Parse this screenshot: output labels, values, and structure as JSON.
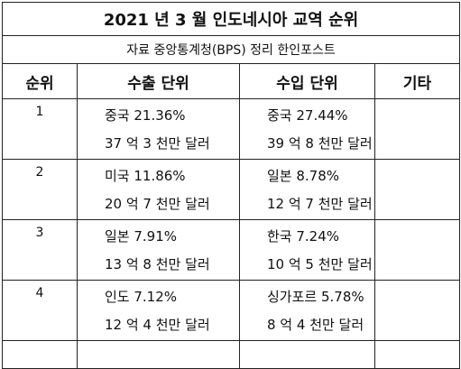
{
  "header": {
    "title": "2021 년 3 월 인도네시아 교역 순위",
    "subtitle": "자료 중앙통계청(BPS) 정리 한인포스트"
  },
  "table": {
    "columns": [
      "순위",
      "수출 단위",
      "수입 단위",
      "기타"
    ],
    "rows": [
      {
        "rank": "1",
        "export": [
          "중국 21.36%",
          "37 억 3 천만 달러"
        ],
        "import": [
          "중국  27.44%",
          "39 억 8 천만 달러"
        ]
      },
      {
        "rank": "2",
        "export": [
          "미국 11.86%",
          "20 억 7 천만 달러"
        ],
        "import": [
          "일본 8.78%",
          "12 억 7 천만 달러"
        ]
      },
      {
        "rank": "3",
        "export": [
          "일본 7.91%",
          "13 억 8 천만 달러"
        ],
        "import": [
          "한국 7.24%",
          "10 억 5 천만 달러"
        ]
      },
      {
        "rank": "4",
        "export": [
          "인도 7.12%",
          "12 억 4 천만 달러"
        ],
        "import": [
          "싱가포르 5.78%",
          "8 억 4 천만 달러"
        ]
      }
    ]
  }
}
